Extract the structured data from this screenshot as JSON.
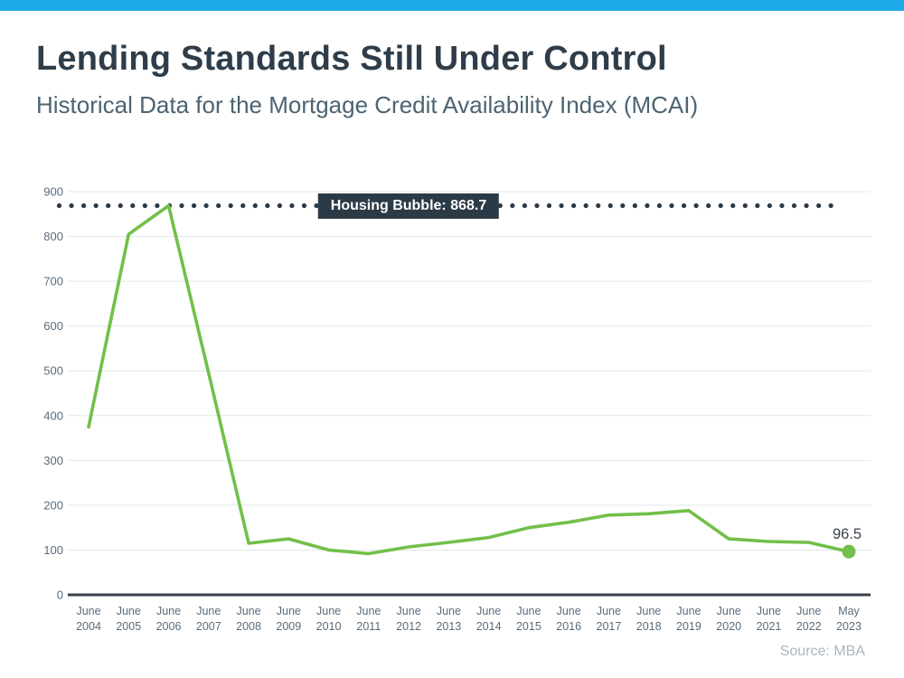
{
  "page": {
    "title": "Lending Standards Still Under Control",
    "subtitle": "Historical Data for the Mortgage Credit Availability Index (MCAI)",
    "source": "Source: MBA"
  },
  "colors": {
    "accent_bar": "#1BA9E8",
    "title_text": "#2E3D49",
    "subtitle_text": "#4D6472",
    "line": "#72BF4A",
    "threshold": "#2B3A47",
    "grid": "#E4E7EA",
    "axis": "#37424E",
    "tick_text": "#5A6B7A",
    "value_label_text": "#39434E",
    "source_text": "#A9B7C0"
  },
  "chart_data": {
    "type": "line",
    "title": "Historical Data for the Mortgage Credit Availability Index (MCAI)",
    "categories": [
      "June 2004",
      "June 2005",
      "June 2006",
      "June 2007",
      "June 2008",
      "June 2009",
      "June 2010",
      "June 2011",
      "June 2012",
      "June 2013",
      "June 2014",
      "June 2015",
      "June 2016",
      "June 2017",
      "June 2018",
      "June 2019",
      "June 2020",
      "June 2021",
      "June 2022",
      "May 2023"
    ],
    "values": [
      375,
      805,
      868.7,
      495,
      115,
      125,
      100,
      92,
      107,
      117,
      128,
      150,
      162,
      178,
      181,
      188,
      125,
      119,
      117,
      96.5
    ],
    "series_name": "MCAI",
    "xlabel": "",
    "ylabel": "",
    "ylim": [
      0,
      900
    ],
    "ytick_step": 100,
    "grid": "horizontal",
    "legend": "none",
    "threshold": {
      "value": 868.7,
      "label": "Housing Bubble: 868.7"
    },
    "end_label": "96.5",
    "end_marker": true
  }
}
